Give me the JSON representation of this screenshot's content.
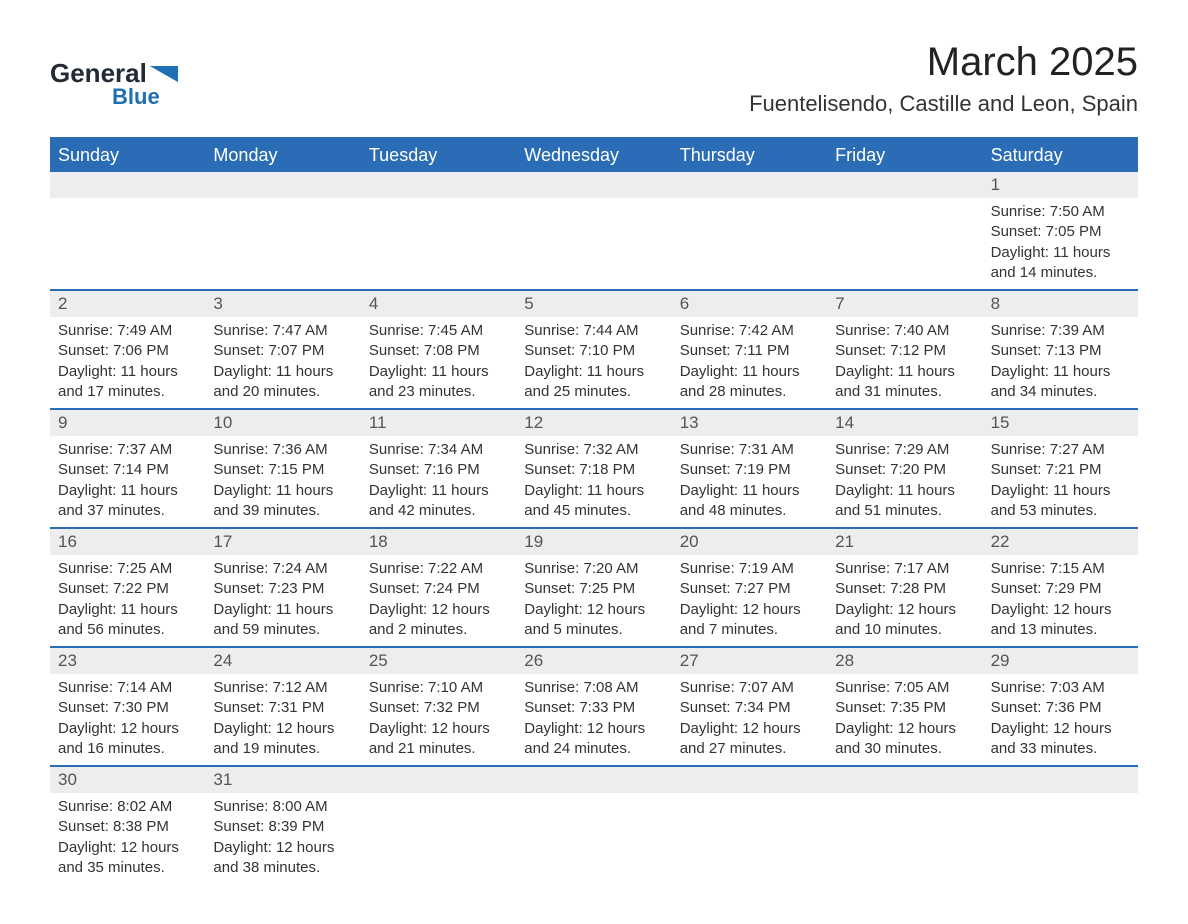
{
  "colors": {
    "header_bg": "#2a6db6",
    "header_text": "#ffffff",
    "row_divider": "#2a6db6",
    "day_num_bg": "#ecedee",
    "day_num_text": "#555555",
    "body_text": "#333333",
    "page_bg": "#ffffff",
    "logo_dark": "#222b33",
    "logo_accent": "#1f6fb3"
  },
  "logo": {
    "line1": "General",
    "line2": "Blue"
  },
  "title": "March 2025",
  "subtitle": "Fuentelisendo, Castille and Leon, Spain",
  "days_of_week": [
    "Sunday",
    "Monday",
    "Tuesday",
    "Wednesday",
    "Thursday",
    "Friday",
    "Saturday"
  ],
  "weeks": [
    [
      {
        "empty": true
      },
      {
        "empty": true
      },
      {
        "empty": true
      },
      {
        "empty": true
      },
      {
        "empty": true
      },
      {
        "empty": true
      },
      {
        "num": "1",
        "sunrise": "Sunrise: 7:50 AM",
        "sunset": "Sunset: 7:05 PM",
        "day1": "Daylight: 11 hours",
        "day2": "and 14 minutes."
      }
    ],
    [
      {
        "num": "2",
        "sunrise": "Sunrise: 7:49 AM",
        "sunset": "Sunset: 7:06 PM",
        "day1": "Daylight: 11 hours",
        "day2": "and 17 minutes."
      },
      {
        "num": "3",
        "sunrise": "Sunrise: 7:47 AM",
        "sunset": "Sunset: 7:07 PM",
        "day1": "Daylight: 11 hours",
        "day2": "and 20 minutes."
      },
      {
        "num": "4",
        "sunrise": "Sunrise: 7:45 AM",
        "sunset": "Sunset: 7:08 PM",
        "day1": "Daylight: 11 hours",
        "day2": "and 23 minutes."
      },
      {
        "num": "5",
        "sunrise": "Sunrise: 7:44 AM",
        "sunset": "Sunset: 7:10 PM",
        "day1": "Daylight: 11 hours",
        "day2": "and 25 minutes."
      },
      {
        "num": "6",
        "sunrise": "Sunrise: 7:42 AM",
        "sunset": "Sunset: 7:11 PM",
        "day1": "Daylight: 11 hours",
        "day2": "and 28 minutes."
      },
      {
        "num": "7",
        "sunrise": "Sunrise: 7:40 AM",
        "sunset": "Sunset: 7:12 PM",
        "day1": "Daylight: 11 hours",
        "day2": "and 31 minutes."
      },
      {
        "num": "8",
        "sunrise": "Sunrise: 7:39 AM",
        "sunset": "Sunset: 7:13 PM",
        "day1": "Daylight: 11 hours",
        "day2": "and 34 minutes."
      }
    ],
    [
      {
        "num": "9",
        "sunrise": "Sunrise: 7:37 AM",
        "sunset": "Sunset: 7:14 PM",
        "day1": "Daylight: 11 hours",
        "day2": "and 37 minutes."
      },
      {
        "num": "10",
        "sunrise": "Sunrise: 7:36 AM",
        "sunset": "Sunset: 7:15 PM",
        "day1": "Daylight: 11 hours",
        "day2": "and 39 minutes."
      },
      {
        "num": "11",
        "sunrise": "Sunrise: 7:34 AM",
        "sunset": "Sunset: 7:16 PM",
        "day1": "Daylight: 11 hours",
        "day2": "and 42 minutes."
      },
      {
        "num": "12",
        "sunrise": "Sunrise: 7:32 AM",
        "sunset": "Sunset: 7:18 PM",
        "day1": "Daylight: 11 hours",
        "day2": "and 45 minutes."
      },
      {
        "num": "13",
        "sunrise": "Sunrise: 7:31 AM",
        "sunset": "Sunset: 7:19 PM",
        "day1": "Daylight: 11 hours",
        "day2": "and 48 minutes."
      },
      {
        "num": "14",
        "sunrise": "Sunrise: 7:29 AM",
        "sunset": "Sunset: 7:20 PM",
        "day1": "Daylight: 11 hours",
        "day2": "and 51 minutes."
      },
      {
        "num": "15",
        "sunrise": "Sunrise: 7:27 AM",
        "sunset": "Sunset: 7:21 PM",
        "day1": "Daylight: 11 hours",
        "day2": "and 53 minutes."
      }
    ],
    [
      {
        "num": "16",
        "sunrise": "Sunrise: 7:25 AM",
        "sunset": "Sunset: 7:22 PM",
        "day1": "Daylight: 11 hours",
        "day2": "and 56 minutes."
      },
      {
        "num": "17",
        "sunrise": "Sunrise: 7:24 AM",
        "sunset": "Sunset: 7:23 PM",
        "day1": "Daylight: 11 hours",
        "day2": "and 59 minutes."
      },
      {
        "num": "18",
        "sunrise": "Sunrise: 7:22 AM",
        "sunset": "Sunset: 7:24 PM",
        "day1": "Daylight: 12 hours",
        "day2": "and 2 minutes."
      },
      {
        "num": "19",
        "sunrise": "Sunrise: 7:20 AM",
        "sunset": "Sunset: 7:25 PM",
        "day1": "Daylight: 12 hours",
        "day2": "and 5 minutes."
      },
      {
        "num": "20",
        "sunrise": "Sunrise: 7:19 AM",
        "sunset": "Sunset: 7:27 PM",
        "day1": "Daylight: 12 hours",
        "day2": "and 7 minutes."
      },
      {
        "num": "21",
        "sunrise": "Sunrise: 7:17 AM",
        "sunset": "Sunset: 7:28 PM",
        "day1": "Daylight: 12 hours",
        "day2": "and 10 minutes."
      },
      {
        "num": "22",
        "sunrise": "Sunrise: 7:15 AM",
        "sunset": "Sunset: 7:29 PM",
        "day1": "Daylight: 12 hours",
        "day2": "and 13 minutes."
      }
    ],
    [
      {
        "num": "23",
        "sunrise": "Sunrise: 7:14 AM",
        "sunset": "Sunset: 7:30 PM",
        "day1": "Daylight: 12 hours",
        "day2": "and 16 minutes."
      },
      {
        "num": "24",
        "sunrise": "Sunrise: 7:12 AM",
        "sunset": "Sunset: 7:31 PM",
        "day1": "Daylight: 12 hours",
        "day2": "and 19 minutes."
      },
      {
        "num": "25",
        "sunrise": "Sunrise: 7:10 AM",
        "sunset": "Sunset: 7:32 PM",
        "day1": "Daylight: 12 hours",
        "day2": "and 21 minutes."
      },
      {
        "num": "26",
        "sunrise": "Sunrise: 7:08 AM",
        "sunset": "Sunset: 7:33 PM",
        "day1": "Daylight: 12 hours",
        "day2": "and 24 minutes."
      },
      {
        "num": "27",
        "sunrise": "Sunrise: 7:07 AM",
        "sunset": "Sunset: 7:34 PM",
        "day1": "Daylight: 12 hours",
        "day2": "and 27 minutes."
      },
      {
        "num": "28",
        "sunrise": "Sunrise: 7:05 AM",
        "sunset": "Sunset: 7:35 PM",
        "day1": "Daylight: 12 hours",
        "day2": "and 30 minutes."
      },
      {
        "num": "29",
        "sunrise": "Sunrise: 7:03 AM",
        "sunset": "Sunset: 7:36 PM",
        "day1": "Daylight: 12 hours",
        "day2": "and 33 minutes."
      }
    ],
    [
      {
        "num": "30",
        "sunrise": "Sunrise: 8:02 AM",
        "sunset": "Sunset: 8:38 PM",
        "day1": "Daylight: 12 hours",
        "day2": "and 35 minutes."
      },
      {
        "num": "31",
        "sunrise": "Sunrise: 8:00 AM",
        "sunset": "Sunset: 8:39 PM",
        "day1": "Daylight: 12 hours",
        "day2": "and 38 minutes."
      },
      {
        "empty": true
      },
      {
        "empty": true
      },
      {
        "empty": true
      },
      {
        "empty": true
      },
      {
        "empty": true
      }
    ]
  ]
}
